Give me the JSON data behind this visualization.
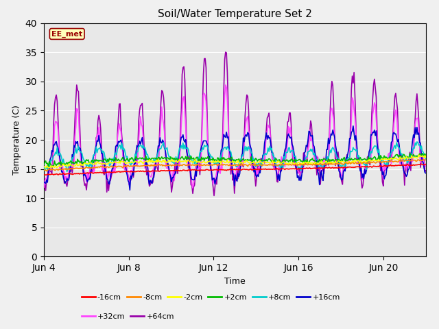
{
  "title": "Soil/Water Temperature Set 2",
  "xlabel": "Time",
  "ylabel": "Temperature (C)",
  "ylim": [
    0,
    40
  ],
  "yticks": [
    0,
    5,
    10,
    15,
    20,
    25,
    30,
    35,
    40
  ],
  "xtick_positions": [
    0,
    4,
    8,
    12,
    16
  ],
  "xtick_labels": [
    "Jun 4",
    "Jun 8",
    "Jun 12",
    "Jun 16",
    "Jun 20"
  ],
  "xlim": [
    0,
    18
  ],
  "series_order": [
    "-16cm",
    "-8cm",
    "-2cm",
    "+2cm",
    "+8cm",
    "+16cm",
    "+32cm",
    "+64cm"
  ],
  "colors": {
    "-16cm": "#ff0000",
    "-8cm": "#ff8800",
    "-2cm": "#ffff00",
    "+2cm": "#00bb00",
    "+8cm": "#00cccc",
    "+16cm": "#0000cc",
    "+32cm": "#ff44ff",
    "+64cm": "#9900aa"
  },
  "lw": 1.2,
  "annotation_text": "EE_met",
  "annotation_color": "#990000",
  "annotation_bg": "#ffffbb",
  "fig_bg": "#f0f0f0",
  "ax_bg": "#e8e8e8",
  "grid_color": "#ffffff",
  "legend_ncol_row1": 6,
  "legend_ncol_row2": 2
}
